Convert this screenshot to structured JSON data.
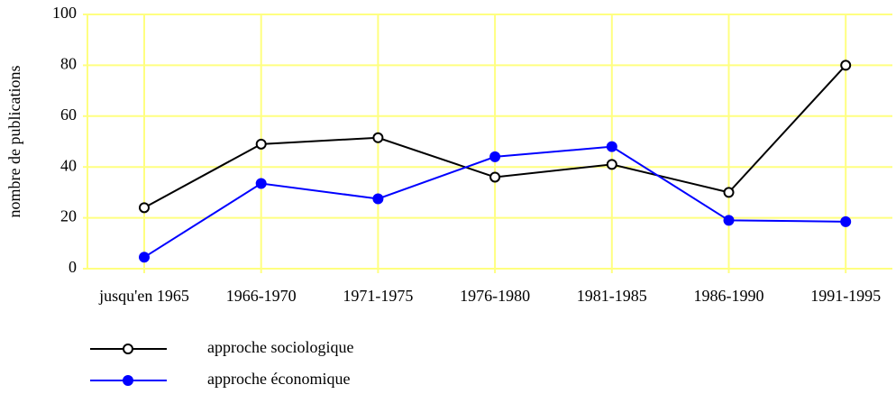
{
  "chart_data": {
    "type": "line",
    "y_label": "nombre de publications",
    "categories": [
      "jusqu'en 1965",
      "1966-1970",
      "1971-1975",
      "1976-1980",
      "1981-1985",
      "1986-1990",
      "1991-1995"
    ],
    "series": [
      {
        "name": "approche sociologique",
        "color": "#000000",
        "marker_fill": "#ffffff",
        "values": [
          24,
          49,
          51.5,
          36,
          41,
          30,
          80
        ]
      },
      {
        "name": "approche économique",
        "color": "#0000ff",
        "marker_fill": "#0000ff",
        "values": [
          4.5,
          33.5,
          27.5,
          44,
          48,
          19,
          18.5
        ]
      }
    ],
    "ylim": [
      0,
      100
    ],
    "yticks": [
      0,
      20,
      40,
      60,
      80,
      100
    ],
    "grid": true,
    "grid_color": "#ffff80"
  }
}
